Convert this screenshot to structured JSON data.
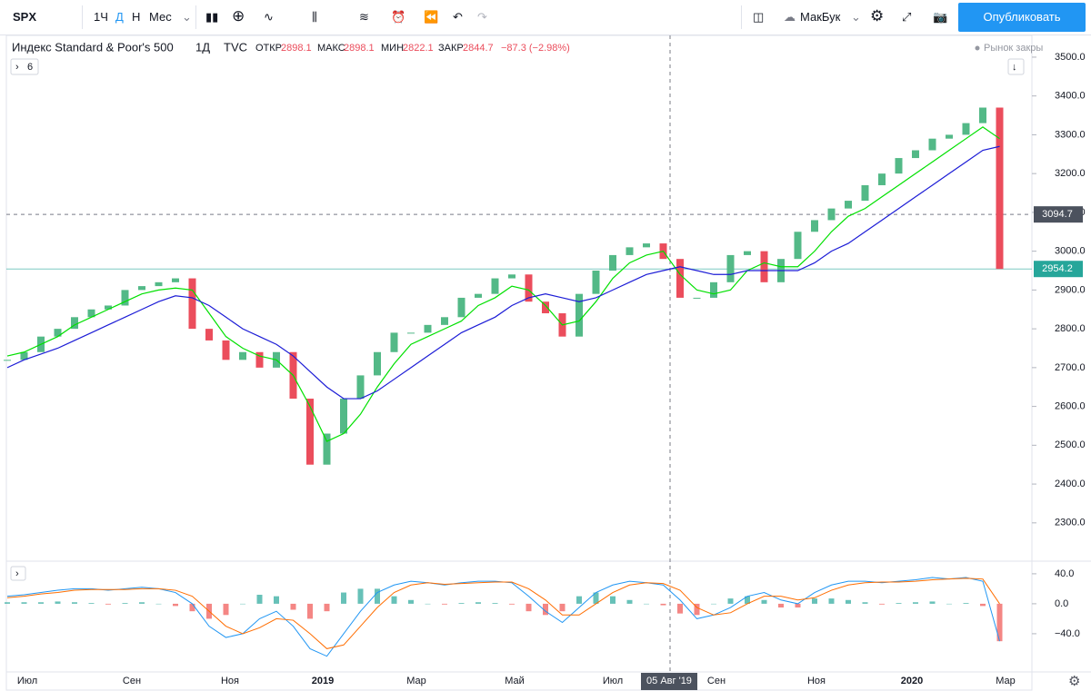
{
  "toolbar": {
    "symbol": "SPX",
    "intervals": [
      "1Ч",
      "Д",
      "Н",
      "Мес"
    ],
    "layout_name": "МакБук",
    "publish": "Опубликовать"
  },
  "chart_data": [
    {
      "type": "candlestick",
      "title": "Индекс Standard & Poor's 500",
      "interval": "1Д",
      "source": "TVC",
      "legend": {
        "open_label": "ОТКР",
        "open": 2898.1,
        "high_label": "МАКС",
        "high": 2898.1,
        "low_label": "МИН",
        "low": 2822.1,
        "close_label": "ЗАКР",
        "close": 2844.7,
        "change": "−87.3 (−2.98%)"
      },
      "status": "Рынок закры",
      "indicators_count": 6,
      "closes": [
        2720,
        2740,
        2780,
        2800,
        2830,
        2850,
        2860,
        2900,
        2910,
        2920,
        2930,
        2800,
        2770,
        2720,
        2740,
        2700,
        2740,
        2620,
        2450,
        2530,
        2620,
        2680,
        2740,
        2790,
        2790,
        2810,
        2830,
        2880,
        2890,
        2930,
        2940,
        2870,
        2840,
        2780,
        2890,
        2950,
        2990,
        3010,
        3020,
        2980,
        2880,
        2880,
        2920,
        2990,
        3000,
        2920,
        2980,
        3050,
        3080,
        3110,
        3130,
        3170,
        3200,
        3240,
        3260,
        3290,
        3300,
        3330,
        3370,
        2954.2
      ],
      "up_color": "#53b987",
      "down_color": "#eb4d5c",
      "series": [
        {
          "color": "#00e000",
          "values": [
            2730,
            2740,
            2760,
            2780,
            2810,
            2830,
            2850,
            2870,
            2890,
            2900,
            2905,
            2900,
            2840,
            2780,
            2750,
            2730,
            2720,
            2680,
            2600,
            2510,
            2530,
            2580,
            2650,
            2710,
            2760,
            2780,
            2800,
            2820,
            2860,
            2880,
            2910,
            2900,
            2860,
            2810,
            2820,
            2870,
            2930,
            2970,
            2990,
            3000,
            2940,
            2900,
            2890,
            2900,
            2950,
            2970,
            2960,
            2960,
            3000,
            3050,
            3090,
            3110,
            3140,
            3170,
            3200,
            3230,
            3260,
            3290,
            3320,
            3290
          ]
        },
        {
          "color": "#1c1cd6",
          "values": [
            2700,
            2720,
            2735,
            2750,
            2770,
            2790,
            2810,
            2830,
            2850,
            2870,
            2885,
            2880,
            2860,
            2830,
            2800,
            2780,
            2760,
            2730,
            2690,
            2650,
            2620,
            2620,
            2640,
            2670,
            2700,
            2730,
            2760,
            2790,
            2810,
            2830,
            2860,
            2880,
            2890,
            2880,
            2870,
            2880,
            2900,
            2920,
            2940,
            2950,
            2960,
            2950,
            2940,
            2940,
            2950,
            2950,
            2950,
            2950,
            2970,
            3000,
            3020,
            3050,
            3080,
            3110,
            3140,
            3170,
            3200,
            3230,
            3260,
            3270
          ]
        }
      ],
      "ylim": [
        2206,
        3556
      ],
      "yticks": [
        {
          "value": 2300,
          "label": "2300.0"
        },
        {
          "value": 2400,
          "label": "2400.0"
        },
        {
          "value": 2500,
          "label": "2500.0"
        },
        {
          "value": 2600,
          "label": "2600.0"
        },
        {
          "value": 2700,
          "label": "2700.0"
        },
        {
          "value": 2800,
          "label": "2800.0"
        },
        {
          "value": 2900,
          "label": "2900.0"
        },
        {
          "value": 3000,
          "label": "3000.0"
        },
        {
          "value": 3100,
          "label": "3100.0"
        },
        {
          "value": 3200,
          "label": "3200.0"
        },
        {
          "value": 3300,
          "label": "3300.0"
        },
        {
          "value": 3400,
          "label": "3400.0"
        },
        {
          "value": 3500,
          "label": "3500.0"
        }
      ],
      "crosshair_price": 3094.7,
      "last_price": 2954.2,
      "crosshair_date": "05 Авг '19",
      "x_labels": [
        "Июл",
        "Сен",
        "Ноя",
        "2019",
        "Мар",
        "Май",
        "Июл",
        "Сен",
        "Ноя",
        "2020",
        "Мар"
      ]
    },
    {
      "type": "macd",
      "histogram": [
        2,
        2,
        2,
        3,
        2,
        1,
        -1,
        1,
        2,
        0,
        -3,
        -10,
        -20,
        -15,
        0,
        12,
        10,
        -8,
        -20,
        -10,
        15,
        20,
        20,
        10,
        5,
        0,
        -1,
        1,
        2,
        1,
        -1,
        -10,
        -15,
        -10,
        10,
        15,
        10,
        5,
        0,
        -2,
        -13,
        -15,
        0,
        7,
        10,
        5,
        -5,
        -5,
        7,
        7,
        5,
        2,
        -1,
        1,
        2,
        3,
        0,
        1,
        -3,
        -50
      ],
      "up_color": "#26a69a",
      "down_color": "#ef5350",
      "series": [
        {
          "color": "#2196f3",
          "values": [
            10,
            12,
            15,
            18,
            20,
            20,
            18,
            20,
            22,
            20,
            15,
            0,
            -30,
            -45,
            -40,
            -20,
            -10,
            -30,
            -60,
            -70,
            -40,
            -10,
            15,
            25,
            30,
            28,
            25,
            28,
            30,
            30,
            28,
            10,
            -10,
            -25,
            -5,
            15,
            25,
            30,
            28,
            25,
            5,
            -20,
            -15,
            -5,
            10,
            15,
            5,
            0,
            15,
            25,
            30,
            30,
            28,
            30,
            32,
            35,
            33,
            35,
            30,
            -50
          ]
        },
        {
          "color": "#ff6d00",
          "values": [
            8,
            10,
            13,
            15,
            18,
            19,
            19,
            19,
            20,
            20,
            18,
            10,
            -10,
            -30,
            -40,
            -32,
            -20,
            -22,
            -40,
            -60,
            -55,
            -30,
            -5,
            15,
            25,
            28,
            26,
            27,
            28,
            29,
            29,
            20,
            5,
            -15,
            -15,
            0,
            15,
            25,
            28,
            27,
            18,
            -5,
            -15,
            -12,
            0,
            10,
            10,
            5,
            8,
            18,
            25,
            28,
            29,
            29,
            30,
            32,
            33,
            34,
            33,
            0
          ]
        }
      ],
      "ylim": [
        -91,
        52
      ],
      "yticks": [
        {
          "value": 40,
          "label": "40.0"
        },
        {
          "value": 0,
          "label": "0.0"
        },
        {
          "value": -40,
          "label": "−40.0"
        }
      ]
    }
  ]
}
